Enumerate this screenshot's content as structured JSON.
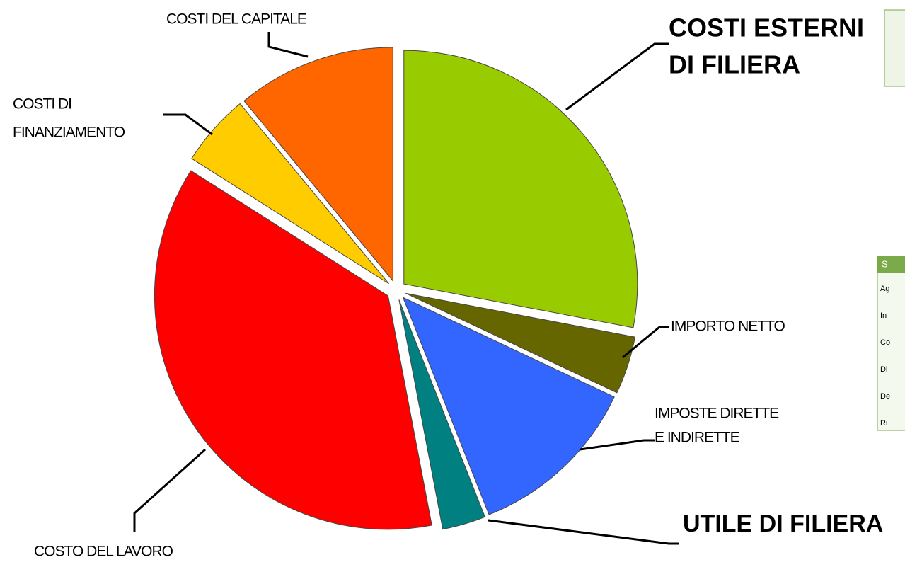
{
  "chart_data": {
    "type": "pie",
    "categories": [
      [
        "COSTI ESTERNI",
        "DI  FILIERA"
      ],
      [
        "IMPORTO NETTO"
      ],
      [
        "IMPOSTE DIRETTE",
        "E INDIRETTE"
      ],
      [
        "UTILE DI FILIERA"
      ],
      [
        "COSTO DEL LAVORO"
      ],
      [
        "COSTI DI",
        "FINANZIAMENTO"
      ],
      [
        "COSTI DEL CAPITALE"
      ]
    ],
    "values": [
      28,
      4,
      12,
      3,
      37,
      5,
      11
    ],
    "colors": [
      "#99cc00",
      "#666600",
      "#3366ff",
      "#008080",
      "#ff0000",
      "#ffcc00",
      "#ff6600"
    ],
    "side_table": {
      "header": "S",
      "rows": [
        "Ag",
        "In",
        "Co",
        "Di",
        "De",
        "Ri"
      ]
    }
  }
}
